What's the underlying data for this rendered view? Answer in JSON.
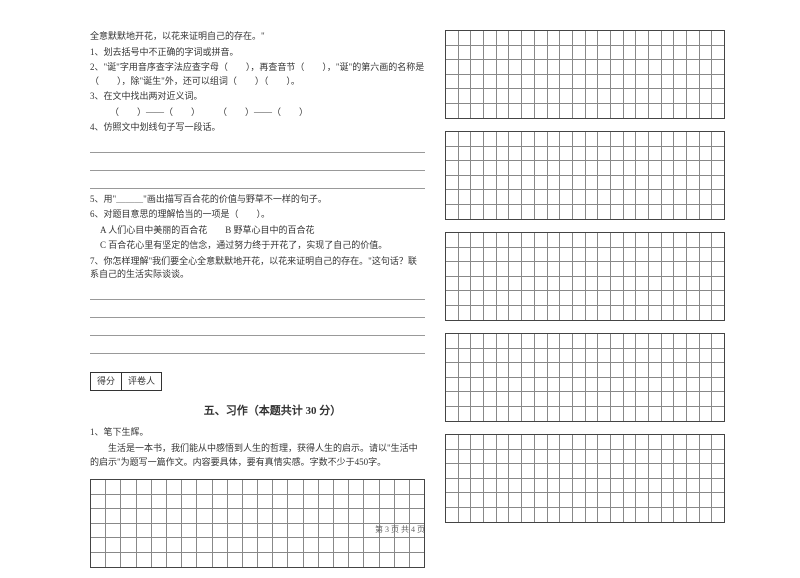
{
  "left": {
    "intro": "全意默默地开花，以花来证明自己的存在。\"",
    "q1": "1、划去括号中不正确的字词或拼音。",
    "q2": "2、\"诞\"字用音序查字法应查字母（　　），再查音节（　　），\"诞\"的第六画的名称是（　　），除\"诞生\"外，还可以组词（　　）（　　）。",
    "q3": "3、在文中找出两对近义词。",
    "q3b": "（　　）——（　　）　　　（　　）——（　　）",
    "q4": "4、仿照文中划线句子写一段话。",
    "q5": "5、用\"＿＿＿\"画出描写百合花的价值与野草不一样的句子。",
    "q6": "6、对题目意思的理解恰当的一项是（　　）。",
    "q6a": "A 人们心目中美丽的百合花　　B 野草心目中的百合花",
    "q6c": "C 百合花心里有坚定的信念，通过努力终于开花了，实现了自己的价值。",
    "q7": "7、你怎样理解\"我们要全心全意默默地开花，以花来证明自己的存在。\"这句话？联系自己的生活实际谈谈。"
  },
  "score": {
    "cell1": "得分",
    "cell2": "评卷人"
  },
  "section5": {
    "title": "五、习作（本题共计 30 分）",
    "sub": "1、笔下生辉。",
    "desc": "　　生活是一本书，我们能从中感悟到人生的哲理，获得人生的启示。请以\"生活中的启示\"为题写一篇作文。内容要具体，要有真情实感。字数不少于450字。"
  },
  "footer": "第 3 页 共 4 页",
  "grids": {
    "left_rows": 6,
    "left_cols": 22,
    "right_block_rows": 6,
    "right_cols": 22,
    "right_blocks": 5
  }
}
